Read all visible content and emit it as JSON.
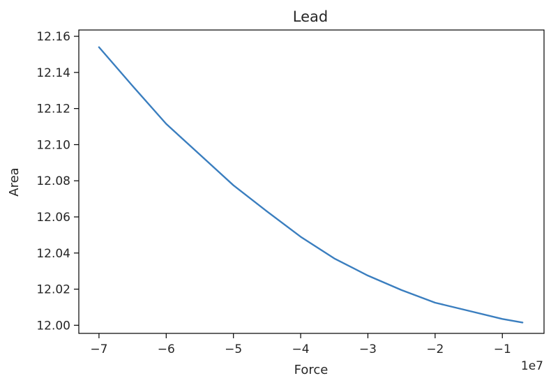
{
  "chart_data": {
    "type": "line",
    "title": "Lead",
    "xlabel": "Force",
    "ylabel": "Area",
    "x_offset_label": "1e7",
    "xlim": [
      -73000000,
      -3800000
    ],
    "ylim": [
      11.9955,
      12.1635
    ],
    "x_ticks": [
      -70000000,
      -60000000,
      -50000000,
      -40000000,
      -30000000,
      -20000000,
      -10000000
    ],
    "x_tick_labels": [
      "−7",
      "−6",
      "−5",
      "−4",
      "−3",
      "−2",
      "−1"
    ],
    "y_ticks": [
      12.0,
      12.02,
      12.04,
      12.06,
      12.08,
      12.1,
      12.12,
      12.14,
      12.16
    ],
    "y_tick_labels": [
      "12.00",
      "12.02",
      "12.04",
      "12.06",
      "12.08",
      "12.10",
      "12.12",
      "12.14",
      "12.16"
    ],
    "grid": false,
    "legend": "none",
    "series": [
      {
        "color": "#3a7ebf",
        "x": [
          -70000000,
          -65000000,
          -60000000,
          -55000000,
          -50000000,
          -45000000,
          -40000000,
          -35000000,
          -30000000,
          -25000000,
          -20000000,
          -15000000,
          -10000000,
          -7000000
        ],
        "y": [
          12.154,
          12.1325,
          12.1115,
          12.0945,
          12.0775,
          12.063,
          12.049,
          12.037,
          12.0275,
          12.0195,
          12.0125,
          12.008,
          12.0035,
          12.0015
        ]
      }
    ]
  }
}
